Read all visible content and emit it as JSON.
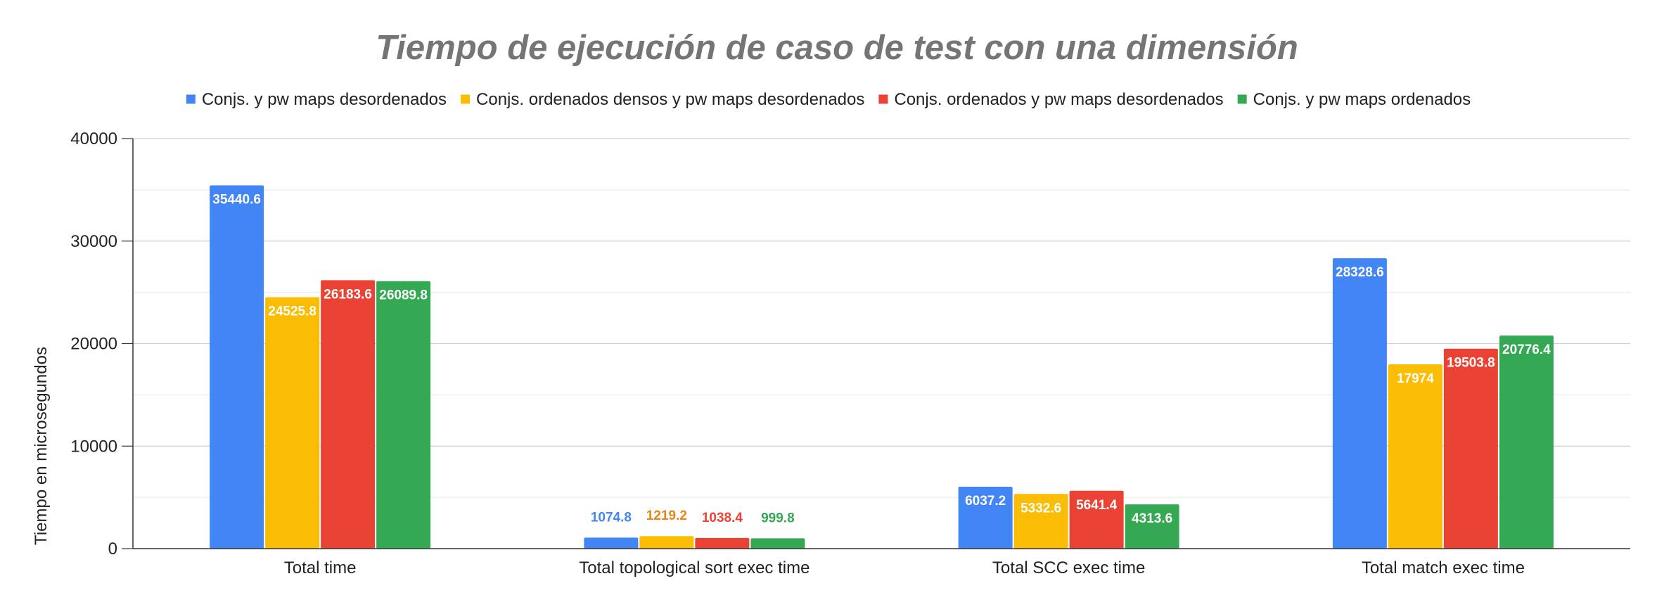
{
  "chart_data": {
    "type": "bar",
    "title": "Tiempo de ejecución de caso de test con una dimensión",
    "xlabel": "",
    "ylabel": "Tiempo en microsegundos",
    "ylim": [
      0,
      40000
    ],
    "yticks": [
      0,
      10000,
      20000,
      30000,
      40000
    ],
    "ytick_labels": [
      "0",
      "10000",
      "20000",
      "30000",
      "40000"
    ],
    "grid": true,
    "legend_position": "top",
    "categories": [
      "Total time",
      "Total topological sort exec time",
      "Total SCC exec time",
      "Total match exec time"
    ],
    "series": [
      {
        "name": "Conjs. y pw maps desordenados",
        "color": "#4285f4",
        "label_outside_color": "#4285f4",
        "values": [
          35440.6,
          1074.8,
          6037.2,
          28328.6
        ],
        "value_labels": [
          "35440.6",
          "1074.8",
          "6037.2",
          "28328.6"
        ]
      },
      {
        "name": "Conjs. ordenados densos y pw maps desordenados",
        "color": "#fbbc04",
        "label_outside_color": "#e8861a",
        "values": [
          24525.8,
          1219.2,
          5332.6,
          17974
        ],
        "value_labels": [
          "24525.8",
          "1219.2",
          "5332.6",
          "17974"
        ]
      },
      {
        "name": "Conjs. ordenados y pw maps desordenados",
        "color": "#ea4335",
        "label_outside_color": "#ea4335",
        "values": [
          26183.6,
          1038.4,
          5641.4,
          19503.8
        ],
        "value_labels": [
          "26183.6",
          "1038.4",
          "5641.4",
          "19503.8"
        ]
      },
      {
        "name": "Conjs. y pw maps ordenados",
        "color": "#34a853",
        "label_outside_color": "#34a853",
        "values": [
          26089.8,
          999.8,
          4313.6,
          20776.4
        ],
        "value_labels": [
          "26089.8",
          "999.8",
          "4313.6",
          "20776.4"
        ]
      }
    ]
  }
}
